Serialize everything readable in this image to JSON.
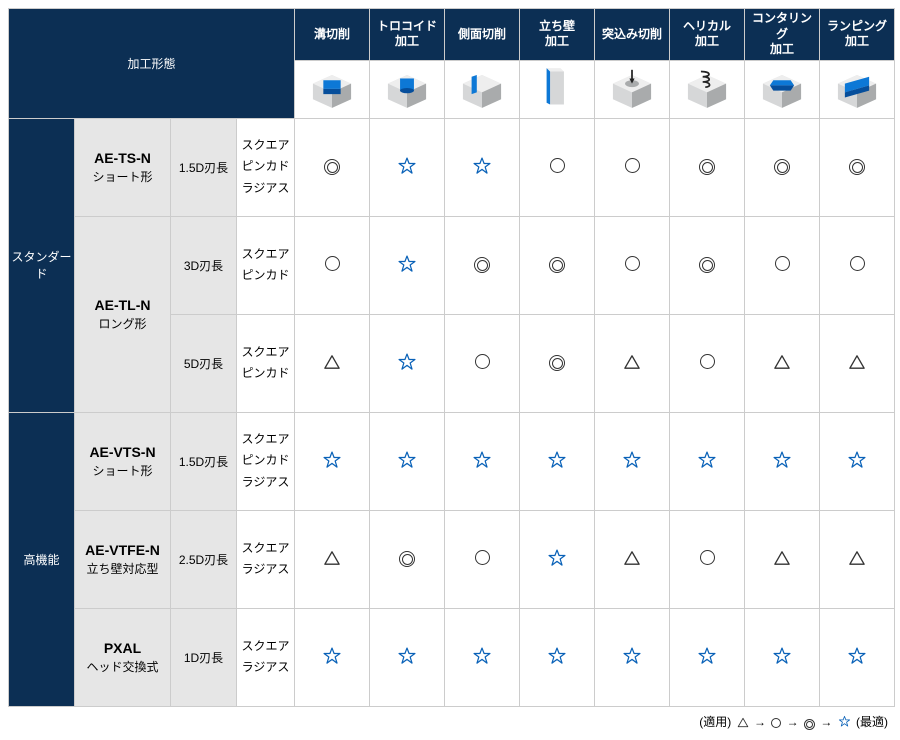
{
  "colors": {
    "header_bg": "#0c2f54",
    "header_text": "#ffffff",
    "grey_bg": "#e6e6e6",
    "border": "#cccccc",
    "star_stroke": "#0a62b8",
    "symbol_stroke": "#333333",
    "icon_block_light": "#d6d7d8",
    "icon_block_top": "#eeeeee",
    "icon_block_dark": "#a9abac",
    "icon_accent": "#0d78d6",
    "icon_accent_dark": "#064e9b"
  },
  "header": {
    "corner_label": "加工形態",
    "columns": [
      {
        "label": "溝切削"
      },
      {
        "label": "トロコイド\n加工"
      },
      {
        "label": "側面切削"
      },
      {
        "label": "立ち壁\n加工"
      },
      {
        "label": "突込み切削"
      },
      {
        "label": "ヘリカル\n加工"
      },
      {
        "label": "コンタリング\n加工"
      },
      {
        "label": "ランピング\n加工"
      }
    ]
  },
  "type_labels": {
    "square": "スクエア",
    "pinkado": "ピンカド",
    "radius": "ラジアス"
  },
  "categories": [
    {
      "name": "スタンダード",
      "products": [
        {
          "code": "AE-TS-N",
          "subtitle": "ショート形",
          "lengths": [
            {
              "label": "1.5D刃長",
              "types": [
                "square",
                "pinkado",
                "radius"
              ],
              "ratings": [
                "dcircle",
                "star",
                "star",
                "circle",
                "circle",
                "dcircle",
                "dcircle",
                "dcircle"
              ]
            }
          ]
        },
        {
          "code": "AE-TL-N",
          "subtitle": "ロング形",
          "lengths": [
            {
              "label": "3D刃長",
              "types": [
                "square",
                "pinkado"
              ],
              "ratings": [
                "circle",
                "star",
                "dcircle",
                "dcircle",
                "circle",
                "dcircle",
                "circle",
                "circle"
              ]
            },
            {
              "label": "5D刃長",
              "types": [
                "square",
                "pinkado"
              ],
              "ratings": [
                "tri",
                "star",
                "circle",
                "dcircle",
                "tri",
                "circle",
                "tri",
                "tri"
              ]
            }
          ]
        }
      ]
    },
    {
      "name": "高機能",
      "products": [
        {
          "code": "AE-VTS-N",
          "subtitle": "ショート形",
          "lengths": [
            {
              "label": "1.5D刃長",
              "types": [
                "square",
                "pinkado",
                "radius"
              ],
              "ratings": [
                "star",
                "star",
                "star",
                "star",
                "star",
                "star",
                "star",
                "star"
              ]
            }
          ]
        },
        {
          "code": "AE-VTFE-N",
          "subtitle": "立ち壁対応型",
          "lengths": [
            {
              "label": "2.5D刃長",
              "types": [
                "square",
                "radius"
              ],
              "ratings": [
                "tri",
                "dcircle",
                "circle",
                "star",
                "tri",
                "circle",
                "tri",
                "tri"
              ]
            }
          ]
        },
        {
          "code": "PXAL",
          "subtitle": "ヘッド交換式",
          "lengths": [
            {
              "label": "1D刃長",
              "types": [
                "square",
                "radius"
              ],
              "ratings": [
                "star",
                "star",
                "star",
                "star",
                "star",
                "star",
                "star",
                "star"
              ]
            }
          ]
        }
      ]
    }
  ],
  "legend": {
    "prefix": "(適用)",
    "arrow": " → ",
    "suffix": "(最適)"
  },
  "col_widths": {
    "cat": 66,
    "prod": 96,
    "len": 66,
    "types": 58,
    "rating": 75
  }
}
